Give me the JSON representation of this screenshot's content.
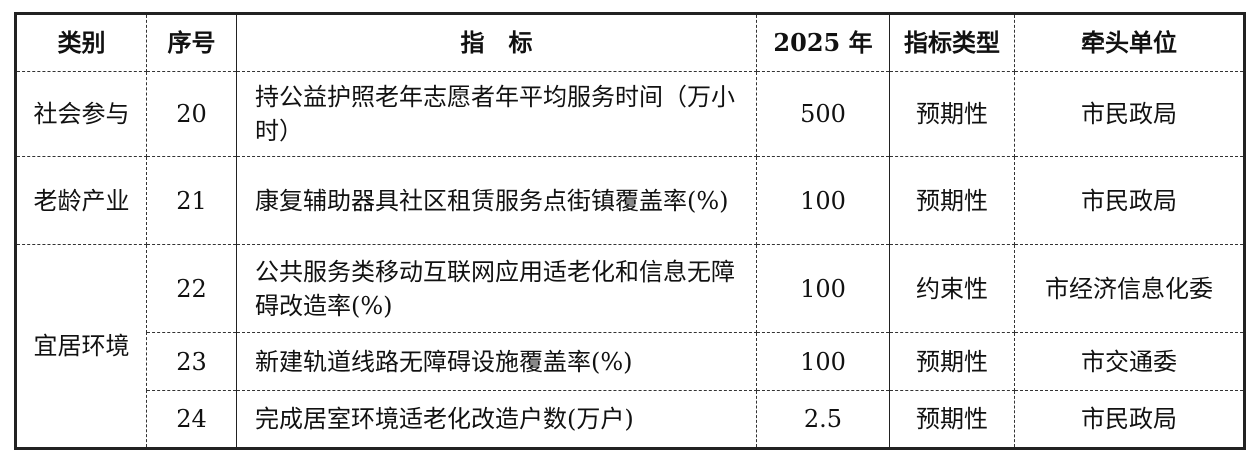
{
  "headers": [
    "类别",
    "序号",
    "指　标",
    "2025 年",
    "指标类型",
    "牵头单位"
  ],
  "rows": [
    {
      "category": "社会参与",
      "no": "20",
      "indicator": "持公益护照老年志愿者年平均服务时间（万小时）",
      "value": "500",
      "type": "预期性",
      "lead": "市民政局"
    },
    {
      "category": "老龄产业",
      "no": "21",
      "indicator": "康复辅助器具社区租赁服务点街镇覆盖率(%)",
      "value": "100",
      "type": "预期性",
      "lead": "市民政局"
    },
    {
      "category": "宜居环境",
      "no": "22",
      "indicator": "公共服务类移动互联网应用适老化和信息无障碍改造率(%)",
      "value": "100",
      "type": "约束性",
      "lead": "市经济信息化委"
    },
    {
      "no": "23",
      "indicator": "新建轨道线路无障碍设施覆盖率(%)",
      "value": "100",
      "type": "预期性",
      "lead": "市交通委"
    },
    {
      "no": "24",
      "indicator": "完成居室环境适老化改造户数(万户)",
      "value": "2.5",
      "type": "预期性",
      "lead": "市民政局"
    }
  ]
}
